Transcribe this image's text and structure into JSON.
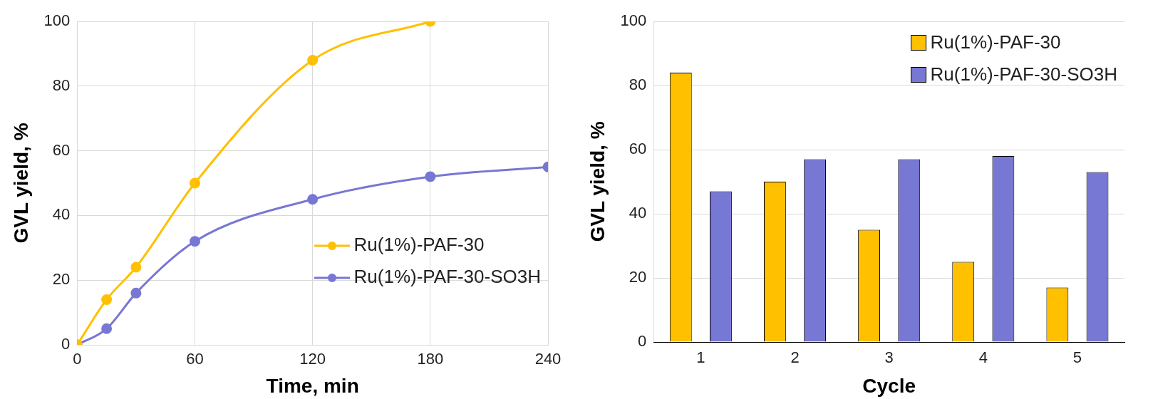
{
  "chart_data": [
    {
      "type": "line",
      "xlabel": "Time, min",
      "ylabel": "GVL yield, %",
      "xlim": [
        0,
        240
      ],
      "xticks": [
        0,
        60,
        120,
        180,
        240
      ],
      "ylim": [
        0,
        100
      ],
      "yticks": [
        0,
        20,
        40,
        60,
        80,
        100
      ],
      "grid": true,
      "legend": "bottom right",
      "marker": "circle",
      "line_style": "solid",
      "series": [
        {
          "name": "Ru(1%)-PAF-30",
          "color": "#ffc000",
          "x": [
            0,
            15,
            30,
            60,
            120,
            180
          ],
          "values": [
            0,
            14,
            24,
            50,
            88,
            100
          ]
        },
        {
          "name": "Ru(1%)-PAF-30-SO3H",
          "color": "#7777d4",
          "x": [
            0,
            15,
            30,
            60,
            120,
            180,
            240
          ],
          "values": [
            0,
            5,
            16,
            32,
            45,
            52,
            55
          ]
        }
      ]
    },
    {
      "type": "bar",
      "xlabel": "Cycle",
      "ylabel": "GVL yield, %",
      "categories": [
        "1",
        "2",
        "3",
        "4",
        "5"
      ],
      "ylim": [
        0,
        100
      ],
      "yticks": [
        0,
        20,
        40,
        60,
        80,
        100
      ],
      "grid": "y",
      "legend": "top right",
      "series": [
        {
          "name": "Ru(1%)-PAF-30",
          "color": "#ffc000",
          "values": [
            84,
            50,
            35,
            25,
            17
          ]
        },
        {
          "name": "Ru(1%)-PAF-30-SO3H",
          "color": "#7777d4",
          "values": [
            47,
            57,
            57,
            58,
            53
          ]
        }
      ]
    }
  ]
}
